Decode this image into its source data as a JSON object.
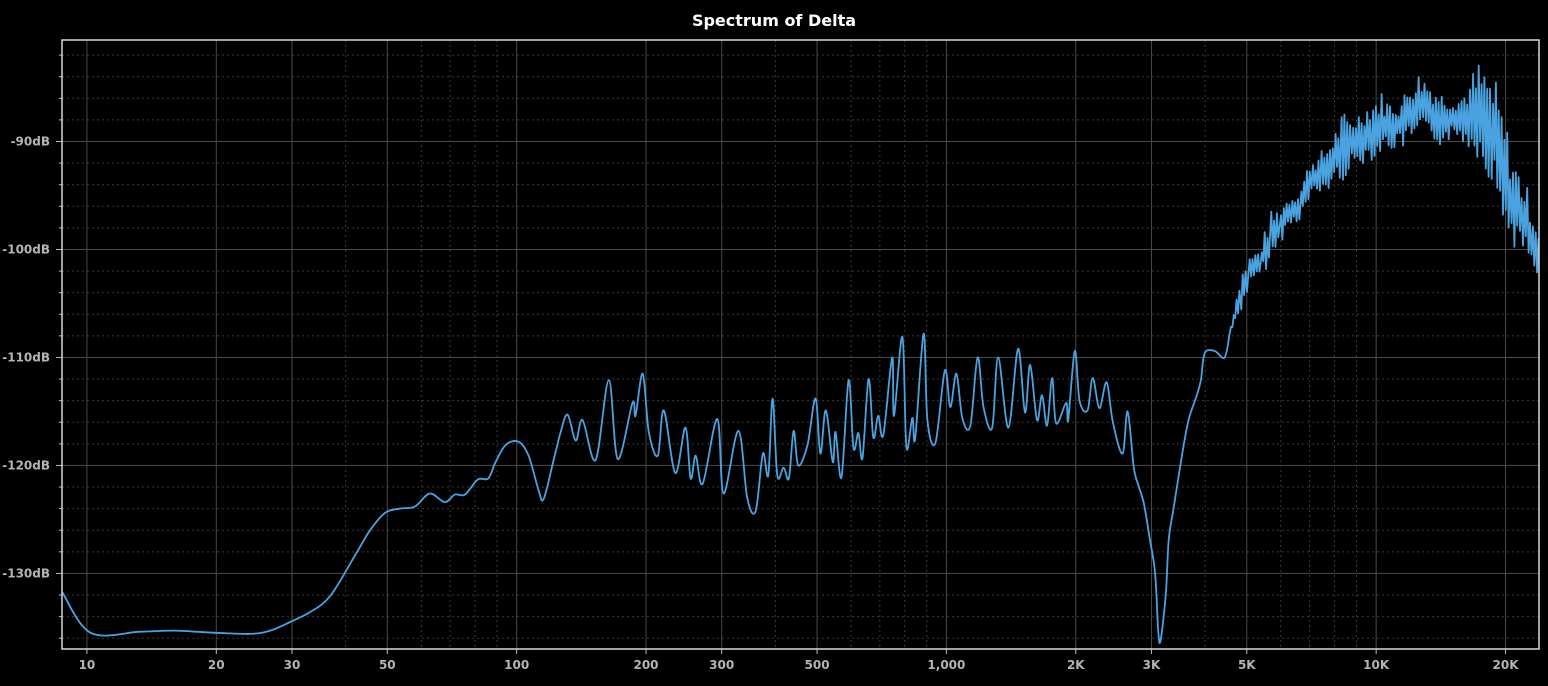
{
  "chart_data": {
    "type": "line",
    "title": "Spectrum of Delta",
    "xlabel": "",
    "ylabel": "",
    "xscale": "log",
    "xlim": [
      8.75,
      23930
    ],
    "ylim": [
      -137.0,
      -80.6
    ],
    "grid": true,
    "line_color": "#4aa3e0",
    "x_ticks": [
      {
        "value": 10,
        "label": "10"
      },
      {
        "value": 20,
        "label": "20"
      },
      {
        "value": 30,
        "label": "30"
      },
      {
        "value": 50,
        "label": "50"
      },
      {
        "value": 100,
        "label": "100"
      },
      {
        "value": 200,
        "label": "200"
      },
      {
        "value": 300,
        "label": "300"
      },
      {
        "value": 500,
        "label": "500"
      },
      {
        "value": 1000,
        "label": "1,000"
      },
      {
        "value": 2000,
        "label": "2K"
      },
      {
        "value": 3000,
        "label": "3K"
      },
      {
        "value": 5000,
        "label": "5K"
      },
      {
        "value": 10000,
        "label": "10K"
      },
      {
        "value": 20000,
        "label": "20K"
      }
    ],
    "x_minor": [
      40,
      60,
      70,
      80,
      90,
      400,
      600,
      700,
      800,
      900,
      4000,
      6000,
      7000,
      8000,
      9000
    ],
    "y_ticks": [
      {
        "value": -90,
        "label": "-90dB"
      },
      {
        "value": -100,
        "label": "-100dB"
      },
      {
        "value": -110,
        "label": "-110dB"
      },
      {
        "value": -120,
        "label": "-120dB"
      },
      {
        "value": -130,
        "label": "-130dB"
      }
    ],
    "y_minor_step": 2,
    "series": [
      {
        "name": "Delta",
        "points": [
          [
            8.75,
            -131.7
          ],
          [
            10.2,
            -135.5
          ],
          [
            13.3,
            -135.4
          ],
          [
            16.0,
            -135.3
          ],
          [
            19.9,
            -135.5
          ],
          [
            24.0,
            -135.6
          ],
          [
            26.7,
            -135.3
          ],
          [
            29.7,
            -134.5
          ],
          [
            33.0,
            -133.6
          ],
          [
            36.8,
            -132.1
          ],
          [
            42.1,
            -128.3
          ],
          [
            45.6,
            -126.0
          ],
          [
            49.4,
            -124.4
          ],
          [
            53.5,
            -124.0
          ],
          [
            58.0,
            -123.8
          ],
          [
            62.8,
            -122.6
          ],
          [
            68.0,
            -123.4
          ],
          [
            71.8,
            -122.7
          ],
          [
            75.8,
            -122.7
          ],
          [
            81.2,
            -121.3
          ],
          [
            85.9,
            -121.2
          ],
          [
            89.3,
            -119.7
          ],
          [
            94.3,
            -118.1
          ],
          [
            101,
            -117.8
          ],
          [
            106.6,
            -119.1
          ],
          [
            112.5,
            -122.3
          ],
          [
            115.6,
            -123.1
          ],
          [
            121.9,
            -119.5
          ],
          [
            126.6,
            -116.9
          ],
          [
            131.4,
            -115.3
          ],
          [
            137.2,
            -117.7
          ],
          [
            142.4,
            -115.8
          ],
          [
            152.7,
            -119.5
          ],
          [
            163.8,
            -112.1
          ],
          [
            171.8,
            -119.4
          ],
          [
            186,
            -114.2
          ],
          [
            189,
            -115.4
          ],
          [
            196.5,
            -111.5
          ],
          [
            203,
            -116.9
          ],
          [
            213,
            -119.1
          ],
          [
            220,
            -114.9
          ],
          [
            234,
            -120.7
          ],
          [
            247,
            -116.5
          ],
          [
            254,
            -121.2
          ],
          [
            261,
            -119.1
          ],
          [
            271,
            -121.7
          ],
          [
            293,
            -115.7
          ],
          [
            303,
            -122.6
          ],
          [
            328,
            -116.8
          ],
          [
            344,
            -123.0
          ],
          [
            360,
            -124.2
          ],
          [
            374,
            -118.9
          ],
          [
            385,
            -120.9
          ],
          [
            394,
            -113.8
          ],
          [
            404,
            -120.9
          ],
          [
            418,
            -120.2
          ],
          [
            430,
            -121.2
          ],
          [
            441,
            -116.8
          ],
          [
            452,
            -120.0
          ],
          [
            475,
            -118.1
          ],
          [
            496,
            -113.8
          ],
          [
            509,
            -118.9
          ],
          [
            524,
            -114.9
          ],
          [
            544,
            -119.7
          ],
          [
            552,
            -116.9
          ],
          [
            570,
            -121.1
          ],
          [
            592,
            -112.1
          ],
          [
            608,
            -118.4
          ],
          [
            624,
            -117.0
          ],
          [
            638,
            -119.3
          ],
          [
            659,
            -112.0
          ],
          [
            676,
            -117.4
          ],
          [
            694,
            -115.4
          ],
          [
            713,
            -117.2
          ],
          [
            748,
            -110.0
          ],
          [
            755,
            -115.4
          ],
          [
            790,
            -108.1
          ],
          [
            807,
            -118.3
          ],
          [
            833,
            -115.6
          ],
          [
            846,
            -117.5
          ],
          [
            885,
            -107.8
          ],
          [
            903,
            -115.8
          ],
          [
            943,
            -117.9
          ],
          [
            992,
            -111.2
          ],
          [
            1021,
            -114.6
          ],
          [
            1055,
            -111.5
          ],
          [
            1089,
            -115.6
          ],
          [
            1137,
            -116.3
          ],
          [
            1182,
            -110.0
          ],
          [
            1220,
            -114.6
          ],
          [
            1278,
            -116.5
          ],
          [
            1320,
            -110.0
          ],
          [
            1394,
            -116.5
          ],
          [
            1468,
            -109.2
          ],
          [
            1524,
            -115.1
          ],
          [
            1566,
            -110.7
          ],
          [
            1625,
            -115.8
          ],
          [
            1669,
            -113.5
          ],
          [
            1715,
            -116.3
          ],
          [
            1762,
            -111.9
          ],
          [
            1800,
            -116.1
          ],
          [
            1900,
            -114.2
          ],
          [
            1920,
            -115.8
          ],
          [
            1990,
            -109.4
          ],
          [
            2040,
            -114.0
          ],
          [
            2130,
            -114.9
          ],
          [
            2190,
            -111.9
          ],
          [
            2270,
            -114.7
          ],
          [
            2360,
            -112.3
          ],
          [
            2440,
            -116.0
          ],
          [
            2570,
            -118.9
          ],
          [
            2640,
            -115.0
          ],
          [
            2730,
            -120.2
          ],
          [
            2800,
            -121.9
          ],
          [
            2880,
            -123.5
          ],
          [
            2970,
            -126.7
          ],
          [
            3060,
            -130.0
          ],
          [
            3110,
            -135.3
          ],
          [
            3150,
            -136.2
          ],
          [
            3240,
            -131.9
          ],
          [
            3290,
            -126.9
          ],
          [
            3380,
            -123.9
          ],
          [
            3480,
            -120.7
          ],
          [
            3570,
            -118.0
          ],
          [
            3670,
            -115.6
          ],
          [
            3810,
            -113.7
          ],
          [
            3910,
            -112.1
          ],
          [
            3990,
            -109.6
          ],
          [
            4210,
            -109.4
          ],
          [
            4440,
            -110.0
          ],
          [
            4560,
            -107.8
          ]
        ],
        "noise_band": [
          [
            4820,
            -106.1,
            -102.4
          ],
          [
            5040,
            -103.8,
            -100.6
          ],
          [
            5380,
            -102.4,
            -99.9
          ],
          [
            5660,
            -101.5,
            -96.9
          ],
          [
            5960,
            -99.6,
            -95.9
          ],
          [
            6290,
            -97.8,
            -95.0
          ],
          [
            6650,
            -97.3,
            -94.5
          ],
          [
            7020,
            -95.5,
            -91.5
          ],
          [
            7410,
            -95.0,
            -91.3
          ],
          [
            7810,
            -94.5,
            -89.9
          ],
          [
            8250,
            -93.8,
            -87.9
          ],
          [
            8710,
            -93.1,
            -87.6
          ],
          [
            9180,
            -92.2,
            -87.1
          ],
          [
            9690,
            -91.8,
            -86.2
          ],
          [
            10220,
            -91.3,
            -85.7
          ],
          [
            10780,
            -90.8,
            -86.2
          ],
          [
            11380,
            -90.8,
            -86.2
          ],
          [
            12000,
            -90.4,
            -84.4
          ],
          [
            12670,
            -89.9,
            -83.4
          ],
          [
            13360,
            -90.1,
            -84.4
          ],
          [
            14100,
            -90.4,
            -85.3
          ],
          [
            14870,
            -89.9,
            -85.7
          ],
          [
            15690,
            -89.9,
            -85.7
          ],
          [
            16560,
            -90.8,
            -84.4
          ],
          [
            17460,
            -91.8,
            -83.0
          ],
          [
            18430,
            -93.6,
            -83.9
          ],
          [
            19440,
            -96.9,
            -86.2
          ],
          [
            20510,
            -99.2,
            -90.8
          ],
          [
            21640,
            -100.6,
            -92.7
          ],
          [
            22820,
            -101.5,
            -95.5
          ],
          [
            23930,
            -102.9,
            -97.8
          ]
        ]
      }
    ]
  }
}
